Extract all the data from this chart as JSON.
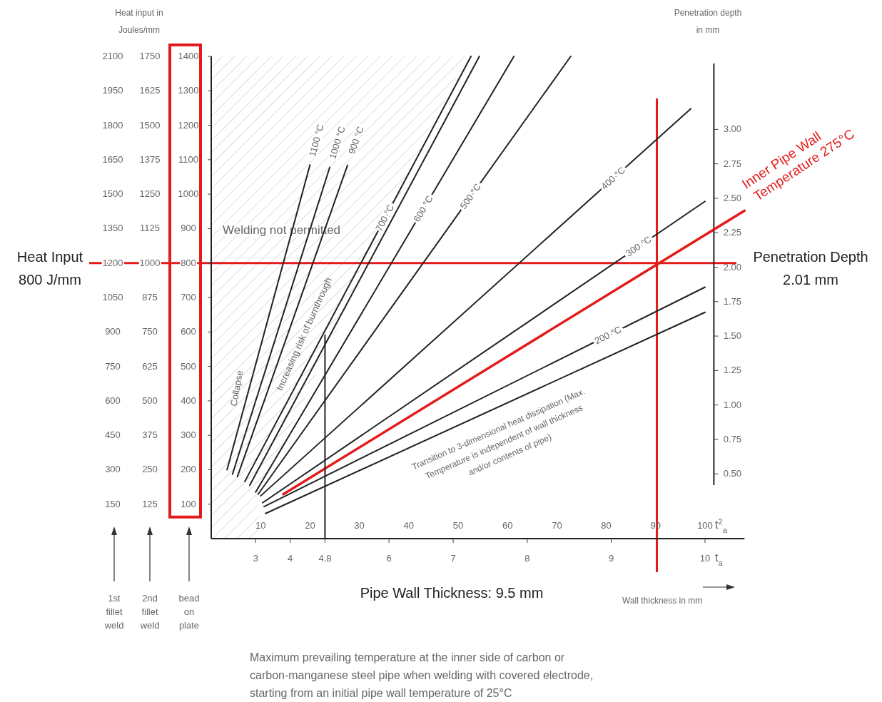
{
  "chart_data": {
    "type": "line",
    "xlabel": "t$^{2}$$_{a}$",
    "ylabel": "Heat input in Joules/mm",
    "y2label": "Penetration depth in mm",
    "xlim": [
      0,
      108
    ],
    "xticks": [
      10,
      20,
      30,
      40,
      50,
      60,
      70,
      80,
      90,
      100
    ],
    "ylim": [
      0,
      1400
    ],
    "yticks": [
      100,
      200,
      300,
      400,
      500,
      600,
      700,
      800,
      900,
      1000,
      1100,
      1200,
      1300,
      1400
    ],
    "y3lim": [
      0,
      1750
    ],
    "y3ticks": [
      125,
      250,
      375,
      500,
      625,
      750,
      875,
      1000,
      1125,
      1250,
      1375,
      1500,
      1625,
      1750
    ],
    "y2lim": [
      0.03,
      3.53
    ],
    "y2ticks": [
      {
        "value": 0.5,
        "label": "0.50"
      },
      {
        "value": 0.75,
        "label": "0.75"
      },
      {
        "value": 1,
        "label": "1.00"
      },
      {
        "value": 1.25,
        "label": "1.25"
      },
      {
        "value": 1.5,
        "label": "1.50"
      },
      {
        "value": 1.75,
        "label": "1.75"
      },
      {
        "value": 2,
        "label": "2.00"
      },
      {
        "value": 2.25,
        "label": "2.25"
      },
      {
        "value": 2.5,
        "label": "2.50"
      },
      {
        "value": 2.75,
        "label": "2.75"
      },
      {
        "value": 3,
        "label": "3.00"
      }
    ],
    "grid": false,
    "marker": "none",
    "line_style": "solid",
    "series": [
      {
        "name": "1100 °C",
        "color": "#222222",
        "x": [
          3.2,
          20
        ],
        "values": [
          200,
          1085
        ]
      },
      {
        "name": "1000 °C",
        "color": "#222222",
        "x": [
          4.3,
          24
        ],
        "values": [
          187,
          1078
        ]
      },
      {
        "name": "900 °C",
        "color": "#222222",
        "x": [
          5.3,
          27.6
        ],
        "values": [
          180,
          1084
        ]
      },
      {
        "name": "700 °C",
        "color": "#222222",
        "x": [
          6.8,
          52.6
        ],
        "values": [
          166,
          1400
        ]
      },
      {
        "color": "#222222",
        "x": [
          7.8,
          54.3
        ],
        "values": [
          155,
          1400
        ]
      },
      {
        "name": "600 °C",
        "color": "#222222",
        "x": [
          9,
          61.3
        ],
        "values": [
          135,
          1400
        ]
      },
      {
        "name": "500 °C",
        "color": "#222222",
        "x": [
          9.5,
          72.8
        ],
        "values": [
          129,
          1400
        ]
      },
      {
        "name": "400 °C",
        "color": "#222222",
        "x": [
          10,
          97.1
        ],
        "values": [
          124,
          1248
        ]
      },
      {
        "name": "300 °C",
        "color": "#222222",
        "x": [
          10.4,
          100
        ],
        "values": [
          104,
          979
        ]
      },
      {
        "name": "200 °C",
        "color": "#222222",
        "x": [
          10.7,
          100
        ],
        "values": [
          93,
          730
        ]
      },
      {
        "color": "#222222",
        "x": [
          11,
          100
        ],
        "values": [
          73,
          657
        ]
      },
      {
        "name": "Inner Pipe Wall Temperature 275°C",
        "color": "#e41b1b",
        "x": [
          14.6,
          108
        ],
        "values": [
          129,
          952
        ]
      },
      {
        "color": "#222222",
        "x": [
          23.04,
          23.04
        ],
        "values": [
          0,
          591
        ]
      }
    ],
    "ref_lines": [
      {
        "axis": "y",
        "value": 800,
        "label": "Heat Input 800 J/mm",
        "color": "#e41b1b"
      },
      {
        "axis": "x",
        "value": 90.25,
        "color": "#e41b1b"
      }
    ],
    "annotations": [
      "Penetration Depth 2.01 mm",
      "Welding not permitted",
      "Collapse",
      "Increasing risk of burnthrough",
      "Transition to 3-dimensional heat dissipation (Max. Temperature is independent of wall thickness and/or contents of pipe)",
      "1st fillet weld",
      "2nd fillet weld",
      "bead on plate",
      "Wall thickness in mm",
      "Maximum prevailing temperature at the inner side of carbon or carbon-manganese steel pipe when welding with covered electrode, starting from an initial pipe wall temperature of 25°C",
      "150",
      "300",
      "450",
      "600",
      "750",
      "900",
      "1050",
      "1200",
      "1350",
      "1500",
      "1650",
      "1800",
      "1950",
      "2100",
      "3",
      "4",
      "4.8",
      "6",
      "7",
      "8",
      "9",
      "10",
      "t$_{a}$",
      "Pipe Wall Thickness: 9.5 mm"
    ]
  }
}
